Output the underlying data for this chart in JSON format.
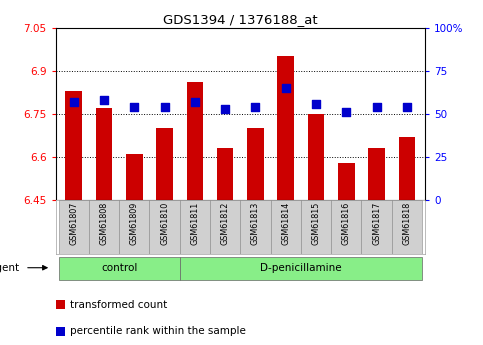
{
  "title": "GDS1394 / 1376188_at",
  "samples": [
    "GSM61807",
    "GSM61808",
    "GSM61809",
    "GSM61810",
    "GSM61811",
    "GSM61812",
    "GSM61813",
    "GSM61814",
    "GSM61815",
    "GSM61816",
    "GSM61817",
    "GSM61818"
  ],
  "transformed_count": [
    6.83,
    6.77,
    6.61,
    6.7,
    6.86,
    6.63,
    6.7,
    6.95,
    6.75,
    6.58,
    6.63,
    6.67
  ],
  "percentile_rank": [
    57,
    58,
    54,
    54,
    57,
    53,
    54,
    65,
    56,
    51,
    54,
    54
  ],
  "ylim_left": [
    6.45,
    7.05
  ],
  "ylim_right": [
    0,
    100
  ],
  "yticks_left": [
    6.45,
    6.6,
    6.75,
    6.9,
    7.05
  ],
  "yticks_right": [
    0,
    25,
    50,
    75,
    100
  ],
  "ytick_labels_right": [
    "0",
    "25",
    "50",
    "75",
    "100%"
  ],
  "bar_color": "#cc0000",
  "dot_color": "#0000cc",
  "control_group": [
    0,
    1,
    2,
    3
  ],
  "treatment_group": [
    4,
    5,
    6,
    7,
    8,
    9,
    10,
    11
  ],
  "control_label": "control",
  "treatment_label": "D-penicillamine",
  "group_bar_color": "#88ee88",
  "agent_label": "agent",
  "legend_bar_label": "transformed count",
  "legend_dot_label": "percentile rank within the sample",
  "bar_bottom": 6.45,
  "dot_size": 28,
  "bar_width": 0.55
}
